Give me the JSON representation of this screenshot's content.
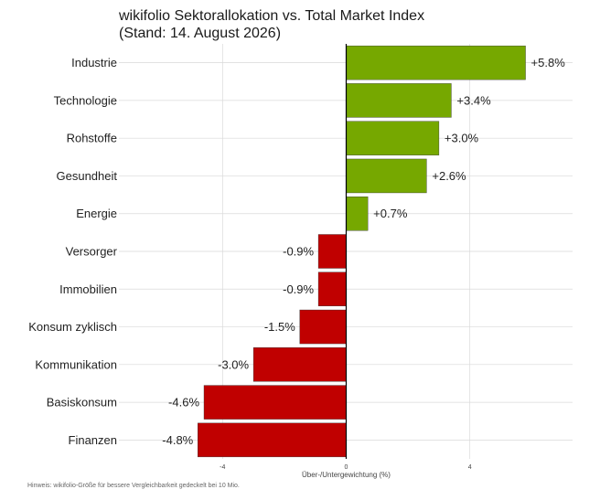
{
  "title": "wikifolio Sektorallokation vs. Total Market Index",
  "subtitle": "(Stand: 14. August 2026)",
  "note": "Hinweis: wikifolio-Größe für bessere Vergleichbarkeit gedeckelt bei 10 Mio.",
  "colors": {
    "positive": "#76a800",
    "negative": "#c00000",
    "grid": "#d9d9d9",
    "axis": "#000000"
  },
  "chart_data": {
    "type": "bar",
    "orientation": "horizontal",
    "categories": [
      "Industrie",
      "Technologie",
      "Rohstoffe",
      "Gesundheit",
      "Energie",
      "Versorger",
      "Immobilien",
      "Konsum zyklisch",
      "Kommunikation",
      "Basiskonsum",
      "Finanzen"
    ],
    "values": [
      5.8,
      3.4,
      3.0,
      2.6,
      0.7,
      -0.9,
      -0.9,
      -1.5,
      -3.0,
      -4.6,
      -4.8
    ],
    "labels": [
      "+5.8%",
      "+3.4%",
      "+3.0%",
      "+2.6%",
      "+0.7%",
      "-0.9%",
      "-0.9%",
      "-1.5%",
      "-3.0%",
      "-4.6%",
      "-4.8%"
    ],
    "xlabel": "Über-/Untergewichtung (%)",
    "xticks": [
      -4,
      0,
      4
    ],
    "xlim": [
      -6.2,
      7.3
    ],
    "grid": true
  }
}
